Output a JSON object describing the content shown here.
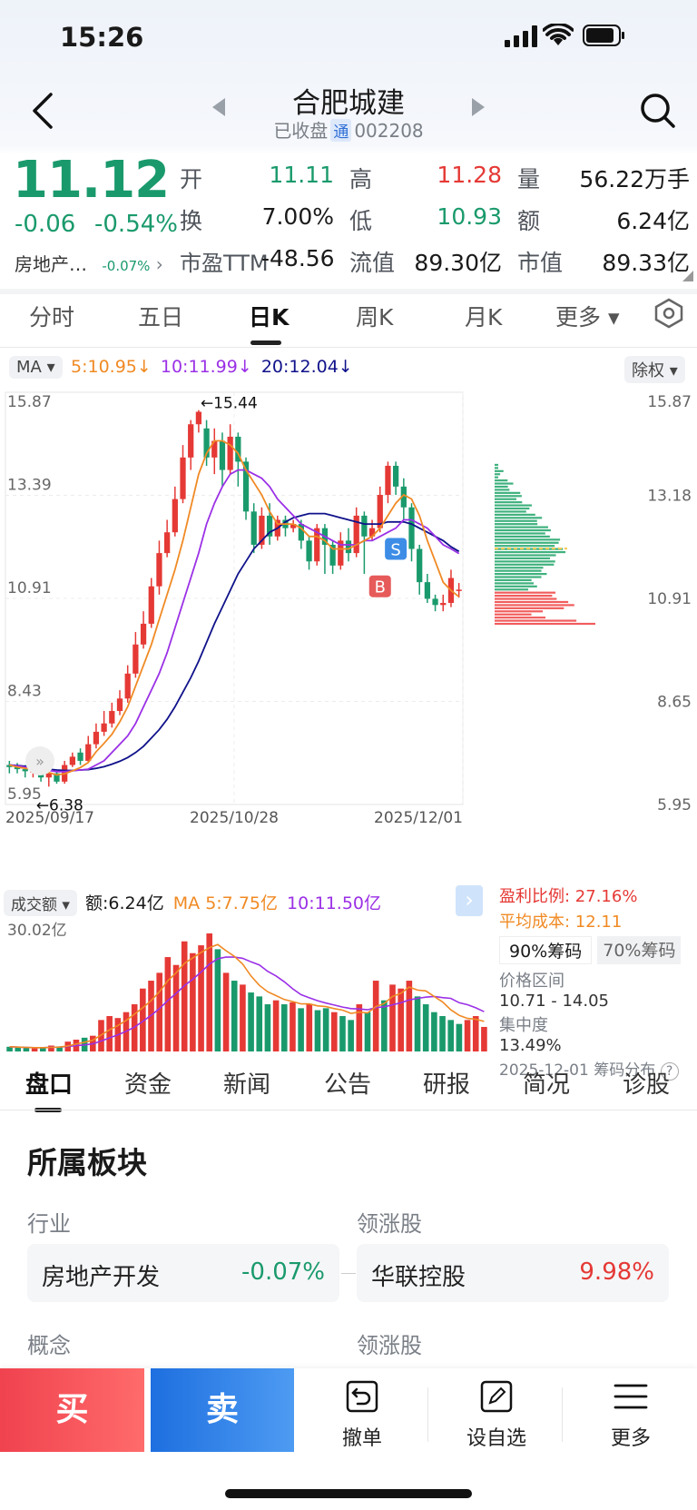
{
  "status": {
    "time": "15:26"
  },
  "header": {
    "title": "合肥城建",
    "state": "已收盘",
    "tong": "通",
    "code": "002208"
  },
  "quote": {
    "price": "11.12",
    "change": "-0.06",
    "change_pct": "-0.54%",
    "sector": "房地产…",
    "sector_pct": "-0.07%",
    "open_label": "开",
    "open": "11.11",
    "high_label": "高",
    "high": "11.28",
    "vol_label": "量",
    "vol": "56.22万手",
    "turnover_label": "换",
    "turnover": "7.00%",
    "low_label": "低",
    "low": "10.93",
    "amount_label": "额",
    "amount": "6.24亿",
    "pe_label": "市盈TTM",
    "pe": "-48.56",
    "float_label": "流值",
    "float_cap": "89.30亿",
    "cap_label": "市值",
    "cap": "89.33亿"
  },
  "period_tabs": [
    "分时",
    "五日",
    "日K",
    "周K",
    "月K",
    "更多 ▾"
  ],
  "ma_bar": {
    "type": "MA ▾",
    "ma5": "5:10.95↓",
    "ma10": "10:11.99↓",
    "ma20": "20:12.04↓",
    "adjust": "除权 ▾"
  },
  "kline": {
    "y_left": [
      "15.87",
      "13.39",
      "10.91",
      "8.43",
      "5.95"
    ],
    "y_right": [
      "15.87",
      "13.18",
      "10.91",
      "8.65",
      "5.95"
    ],
    "dates": [
      "2025/09/17",
      "2025/10/28",
      "2025/12/01"
    ],
    "high_mark": "←15.44",
    "low_mark": "←6.38",
    "sell_mark": "S",
    "buy_mark": "B"
  },
  "volume": {
    "type": "成交额 ▾",
    "amount": "额:6.24亿",
    "ma5": "MA 5:7.75亿",
    "ma10": "10:11.50亿",
    "max": "30.02亿"
  },
  "chips": {
    "profit_ratio": "盈利比例: 27.16%",
    "avg_cost": "平均成本: 12.11",
    "tab90": "90%筹码",
    "tab70": "70%筹码",
    "range_label": "价格区间",
    "range": "10.71 - 14.05",
    "conc_label": "集中度",
    "conc": "13.49%",
    "footer": "2025-12-01 筹码分布"
  },
  "info_tabs": [
    "盘口",
    "资金",
    "新闻",
    "公告",
    "研报",
    "简况",
    "诊股"
  ],
  "section": {
    "title": "所属板块",
    "industry_label": "行业",
    "leader_label": "领涨股",
    "industry": "房地产开发",
    "industry_pct": "-0.07%",
    "leader": "华联控股",
    "leader_pct": "9.98%",
    "concept_label": "概念",
    "leader_label2": "领涨股"
  },
  "bottom": {
    "buy": "买",
    "sell": "卖",
    "cancel": "撤单",
    "watch": "设自选",
    "more": "更多"
  },
  "chart_data": {
    "type": "candlestick",
    "dates": [
      "2025/09/17",
      "2025/10/28",
      "2025/12/01"
    ],
    "ylim": [
      5.95,
      15.87
    ],
    "candles": [
      [
        6.9,
        6.85,
        7.0,
        6.7
      ],
      [
        6.85,
        6.8,
        6.95,
        6.7
      ],
      [
        6.8,
        6.75,
        6.9,
        6.6
      ],
      [
        6.75,
        6.75,
        6.85,
        6.6
      ],
      [
        6.75,
        6.6,
        6.8,
        6.5
      ],
      [
        6.6,
        6.7,
        6.8,
        6.38
      ],
      [
        6.7,
        6.5,
        6.75,
        6.45
      ],
      [
        6.5,
        6.9,
        7.0,
        6.45
      ],
      [
        6.9,
        7.1,
        7.2,
        6.85
      ],
      [
        7.2,
        7.0,
        7.3,
        6.9
      ],
      [
        7.0,
        7.4,
        7.6,
        6.95
      ],
      [
        7.4,
        7.7,
        7.9,
        7.3
      ],
      [
        7.7,
        7.9,
        8.2,
        7.6
      ],
      [
        7.9,
        8.2,
        8.4,
        7.8
      ],
      [
        8.2,
        8.5,
        8.7,
        8.1
      ],
      [
        8.5,
        9.1,
        9.3,
        8.4
      ],
      [
        9.1,
        9.8,
        10.1,
        9.0
      ],
      [
        9.8,
        10.3,
        10.6,
        9.7
      ],
      [
        10.3,
        11.2,
        11.4,
        10.2
      ],
      [
        11.2,
        12.0,
        12.3,
        11.0
      ],
      [
        12.0,
        12.5,
        12.8,
        11.9
      ],
      [
        12.5,
        13.3,
        13.6,
        12.4
      ],
      [
        13.3,
        14.3,
        14.6,
        13.2
      ],
      [
        14.3,
        15.1,
        15.2,
        14.0
      ],
      [
        15.1,
        15.4,
        15.44,
        14.9
      ],
      [
        15.0,
        14.3,
        15.2,
        14.1
      ],
      [
        14.3,
        14.7,
        15.0,
        13.9
      ],
      [
        14.7,
        14.0,
        14.9,
        13.6
      ],
      [
        14.0,
        14.8,
        15.1,
        13.9
      ],
      [
        14.8,
        14.2,
        14.9,
        13.6
      ],
      [
        14.2,
        13.0,
        14.3,
        12.8
      ],
      [
        13.0,
        12.2,
        13.2,
        12.0
      ],
      [
        12.2,
        12.9,
        13.1,
        12.1
      ],
      [
        12.9,
        12.4,
        13.2,
        12.2
      ],
      [
        12.4,
        12.8,
        12.9,
        12.3
      ],
      [
        12.8,
        12.6,
        12.9,
        12.4
      ],
      [
        12.6,
        12.7,
        12.8,
        12.5
      ],
      [
        12.7,
        12.3,
        12.8,
        12.1
      ],
      [
        12.3,
        11.8,
        12.4,
        11.6
      ],
      [
        11.8,
        12.6,
        12.7,
        11.7
      ],
      [
        12.6,
        12.2,
        12.7,
        11.5
      ],
      [
        12.2,
        11.7,
        12.3,
        11.5
      ],
      [
        11.7,
        12.3,
        12.5,
        11.6
      ],
      [
        12.3,
        12.0,
        12.6,
        11.8
      ],
      [
        12.0,
        12.9,
        13.1,
        11.9
      ],
      [
        12.9,
        12.4,
        13.0,
        11.5
      ],
      [
        12.4,
        12.6,
        12.8,
        12.3
      ],
      [
        12.6,
        13.4,
        13.6,
        12.5
      ],
      [
        13.4,
        14.1,
        14.2,
        13.2
      ],
      [
        14.1,
        13.6,
        14.2,
        13.4
      ],
      [
        13.6,
        13.1,
        13.8,
        12.8
      ],
      [
        13.1,
        12.1,
        13.2,
        11.8
      ],
      [
        12.1,
        11.3,
        12.2,
        11.0
      ],
      [
        11.3,
        10.9,
        11.5,
        10.8
      ],
      [
        10.9,
        10.75,
        11.0,
        10.6
      ],
      [
        10.75,
        10.8,
        11.0,
        10.6
      ],
      [
        10.8,
        11.4,
        11.6,
        10.7
      ],
      [
        11.11,
        11.12,
        11.28,
        10.93
      ]
    ],
    "ma5": [
      6.9,
      6.85,
      6.82,
      6.8,
      6.75,
      6.72,
      6.66,
      6.69,
      6.76,
      6.84,
      6.96,
      7.22,
      7.42,
      7.64,
      7.94,
      8.3,
      8.8,
      9.3,
      9.8,
      10.4,
      11.0,
      11.6,
      12.3,
      13.1,
      13.9,
      14.4,
      14.7,
      14.7,
      14.6,
      14.4,
      14.0,
      13.7,
      13.4,
      13.0,
      12.7,
      12.7,
      12.7,
      12.6,
      12.4,
      12.4,
      12.3,
      12.1,
      12.1,
      12.1,
      12.2,
      12.3,
      12.4,
      12.6,
      12.9,
      13.2,
      13.4,
      13.3,
      12.9,
      12.3,
      11.8,
      11.3,
      11.1,
      10.95
    ],
    "ma10": [
      6.9,
      6.88,
      6.85,
      6.83,
      6.8,
      6.77,
      6.74,
      6.74,
      6.76,
      6.78,
      6.8,
      6.9,
      7.0,
      7.2,
      7.4,
      7.6,
      7.9,
      8.3,
      8.7,
      9.1,
      9.6,
      10.2,
      10.8,
      11.4,
      12.0,
      12.7,
      13.2,
      13.6,
      13.9,
      14.0,
      14.0,
      13.9,
      13.8,
      13.6,
      13.3,
      13.1,
      12.9,
      12.7,
      12.6,
      12.5,
      12.4,
      12.3,
      12.2,
      12.2,
      12.2,
      12.3,
      12.3,
      12.4,
      12.5,
      12.6,
      12.8,
      12.8,
      12.7,
      12.6,
      12.4,
      12.2,
      12.1,
      11.99
    ],
    "ma20": [
      6.9,
      6.89,
      6.87,
      6.85,
      6.83,
      6.8,
      6.78,
      6.77,
      6.77,
      6.78,
      6.79,
      6.82,
      6.86,
      6.92,
      6.99,
      7.08,
      7.2,
      7.35,
      7.55,
      7.75,
      8.0,
      8.3,
      8.65,
      9.0,
      9.4,
      9.85,
      10.3,
      10.7,
      11.1,
      11.5,
      11.8,
      12.1,
      12.3,
      12.5,
      12.6,
      12.75,
      12.85,
      12.9,
      12.95,
      12.95,
      12.95,
      12.9,
      12.85,
      12.8,
      12.75,
      12.7,
      12.7,
      12.7,
      12.75,
      12.75,
      12.75,
      12.7,
      12.6,
      12.5,
      12.4,
      12.3,
      12.15,
      12.04
    ],
    "volume_max": 30.02,
    "volume": [
      1.2,
      1.0,
      0.9,
      0.8,
      1.0,
      1.5,
      1.3,
      2.5,
      3.0,
      3.5,
      4.0,
      8.0,
      9.0,
      8.5,
      10.0,
      12.0,
      16.0,
      18.0,
      20.0,
      24.0,
      22.0,
      28.0,
      25.0,
      27.0,
      30.02,
      26.0,
      20.0,
      18.0,
      17.0,
      15.0,
      14.0,
      12.0,
      13.0,
      12.0,
      12.5,
      11.0,
      12.0,
      10.5,
      11.0,
      10.0,
      9.0,
      8.0,
      12.0,
      10.0,
      18.0,
      13.0,
      17.0,
      16.0,
      18.0,
      14.0,
      12.0,
      10.0,
      9.0,
      8.0,
      7.0,
      8.0,
      9.0,
      6.24
    ]
  }
}
